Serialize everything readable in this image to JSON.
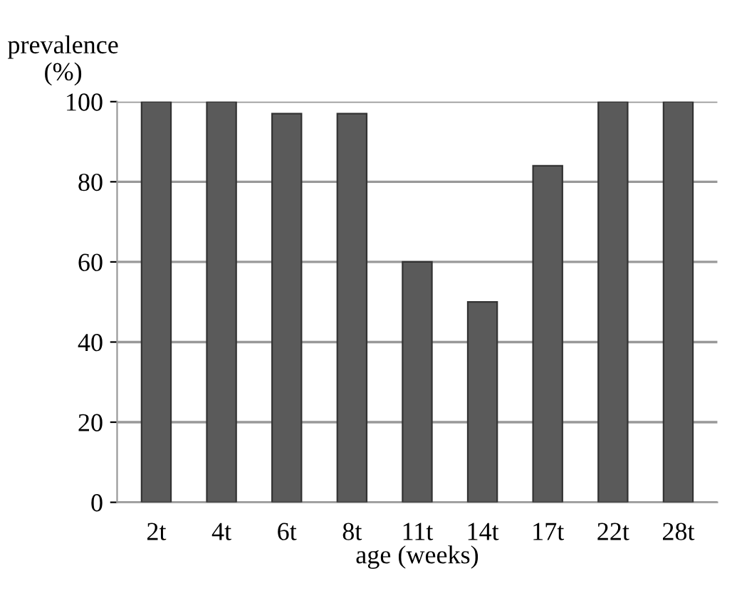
{
  "chart_data": {
    "type": "bar",
    "ylabel": "prevalence\n(%)",
    "xlabel": "age (weeks)",
    "categories": [
      "2t",
      "4t",
      "6t",
      "8t",
      "11t",
      "14t",
      "17t",
      "22t",
      "28t"
    ],
    "values": [
      100,
      100,
      97,
      97,
      60,
      50,
      84,
      100,
      100
    ],
    "color": "#5a5a5a",
    "ylim": [
      0,
      100
    ],
    "yticks": [
      0,
      20,
      40,
      60,
      80,
      100
    ],
    "grid": "y"
  }
}
